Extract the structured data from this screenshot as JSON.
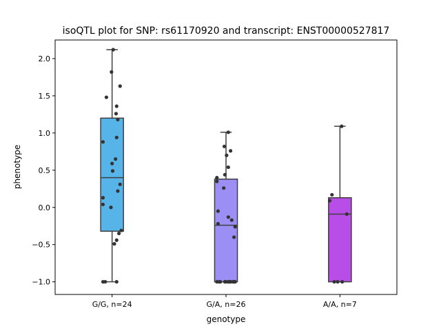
{
  "chart_data": {
    "type": "box",
    "title": "isoQTL plot for SNP: rs61170920 and transcript: ENST00000527817",
    "xlabel": "genotype",
    "ylabel": "phenotype",
    "ylim": [
      -1.17,
      2.25
    ],
    "yticks": [
      -1.0,
      -0.5,
      0.0,
      0.5,
      1.0,
      1.5,
      2.0
    ],
    "ytick_labels": [
      "−1.0",
      "−0.5",
      "0.0",
      "0.5",
      "1.0",
      "1.5",
      "2.0"
    ],
    "categories": [
      "G/G, n=24",
      "G/A, n=26",
      "A/A, n=7"
    ],
    "boxes": [
      {
        "category": "G/G, n=24",
        "color": "#56b4e9",
        "q1": -0.32,
        "median": 0.4,
        "q3": 1.2,
        "whisker_low": -1.0,
        "whisker_high": 2.12
      },
      {
        "category": "G/A, n=26",
        "color": "#9b8ff5",
        "q1": -1.0,
        "median": -0.24,
        "q3": 0.38,
        "whisker_low": -1.0,
        "whisker_high": 1.01
      },
      {
        "category": "A/A, n=7",
        "color": "#b84de8",
        "q1": -1.0,
        "median": -0.09,
        "q3": 0.13,
        "whisker_low": -1.0,
        "whisker_high": 1.09
      }
    ],
    "points": [
      [
        [
          -0.08,
          -1.0
        ],
        [
          -0.06,
          -1.0
        ],
        [
          0.04,
          -1.0
        ],
        [
          0.01,
          2.12
        ],
        [
          -0.005,
          1.82
        ],
        [
          0.07,
          1.63
        ],
        [
          -0.05,
          1.48
        ],
        [
          0.04,
          1.36
        ],
        [
          0.035,
          1.26
        ],
        [
          0.05,
          1.18
        ],
        [
          0.04,
          0.94
        ],
        [
          -0.08,
          0.88
        ],
        [
          0.03,
          0.65
        ],
        [
          0.0,
          0.59
        ],
        [
          0.005,
          0.49
        ],
        [
          0.07,
          0.31
        ],
        [
          0.05,
          0.22
        ],
        [
          -0.08,
          0.13
        ],
        [
          -0.08,
          0.04
        ],
        [
          -0.01,
          0.0
        ],
        [
          0.08,
          -0.31
        ],
        [
          0.06,
          -0.35
        ],
        [
          0.04,
          -0.44
        ],
        [
          0.02,
          -0.49
        ]
      ],
      [
        [
          -0.08,
          -1.0
        ],
        [
          -0.06,
          -1.0
        ],
        [
          -0.01,
          -1.0
        ],
        [
          0.02,
          -1.0
        ],
        [
          0.04,
          -1.0
        ],
        [
          0.06,
          -1.0
        ],
        [
          0.08,
          -1.0
        ],
        [
          0.02,
          1.01
        ],
        [
          -0.015,
          0.82
        ],
        [
          0.04,
          0.76
        ],
        [
          0.005,
          0.7
        ],
        [
          0.02,
          0.54
        ],
        [
          -0.01,
          0.44
        ],
        [
          -0.08,
          0.4
        ],
        [
          -0.08,
          0.35
        ],
        [
          -0.02,
          0.26
        ],
        [
          -0.07,
          -0.05
        ],
        [
          0.02,
          -0.13
        ],
        [
          0.05,
          -0.17
        ],
        [
          -0.07,
          -0.22
        ],
        [
          0.08,
          -0.26
        ],
        [
          0.07,
          -0.4
        ],
        [
          -0.05,
          -1.0
        ],
        [
          0.0,
          -1.0
        ],
        [
          0.03,
          -1.0
        ],
        [
          0.07,
          -1.0
        ]
      ],
      [
        [
          -0.05,
          -1.0
        ],
        [
          -0.02,
          -1.0
        ],
        [
          0.02,
          -1.0
        ],
        [
          0.015,
          1.09
        ],
        [
          -0.07,
          0.17
        ],
        [
          -0.09,
          0.09
        ],
        [
          0.06,
          -0.09
        ]
      ]
    ]
  }
}
